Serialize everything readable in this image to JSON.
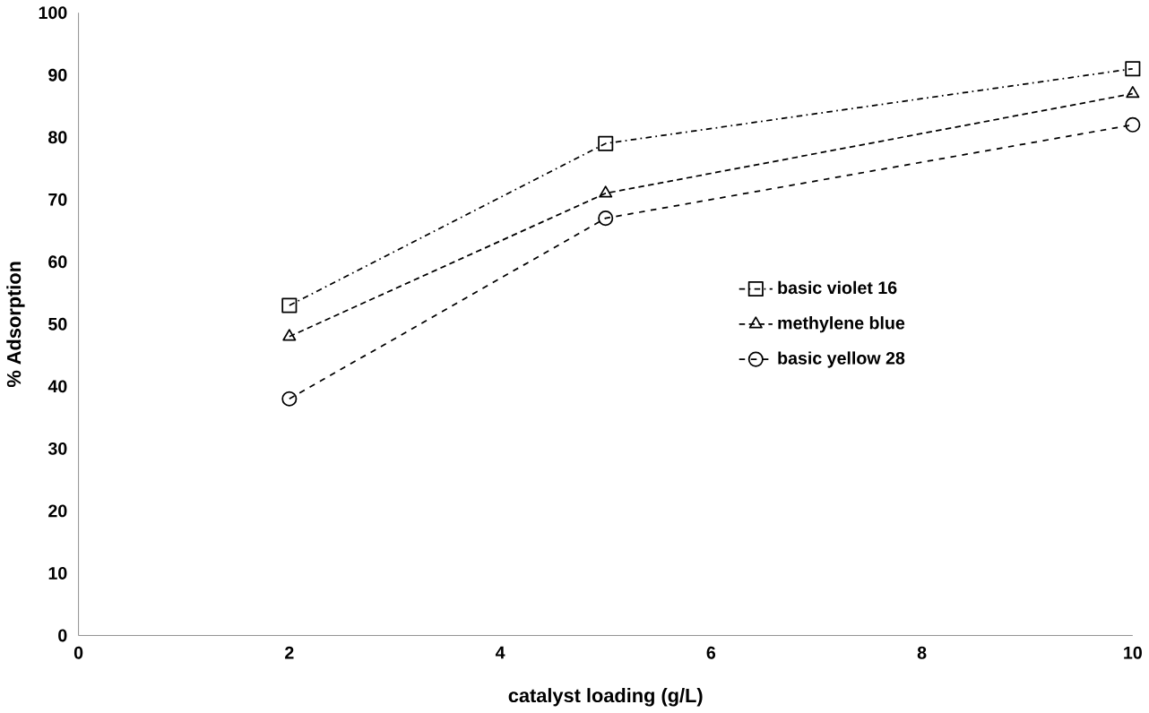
{
  "chart_data": {
    "type": "line",
    "xlabel": "catalyst loading (g/L)",
    "ylabel": "% Adsorption",
    "x": [
      2,
      5,
      10
    ],
    "series": [
      {
        "name": "basic violet 16",
        "color": "#000000",
        "values": [
          53,
          79,
          91
        ],
        "marker": "square",
        "line_style": "dashdot"
      },
      {
        "name": "methylene blue",
        "color": "#000000",
        "values": [
          48,
          71,
          87
        ],
        "marker": "triangle",
        "line_style": "dotted"
      },
      {
        "name": "basic yellow 28",
        "color": "#000000",
        "values": [
          38,
          67,
          82
        ],
        "marker": "circle",
        "line_style": "dashed"
      }
    ],
    "xlim": [
      0,
      10
    ],
    "xticks": [
      0,
      2,
      4,
      6,
      8,
      10
    ],
    "ylim": [
      0,
      100
    ],
    "yticks": [
      0,
      10,
      20,
      30,
      40,
      50,
      60,
      70,
      80,
      90,
      100
    ],
    "grid": false,
    "legend": "right"
  }
}
